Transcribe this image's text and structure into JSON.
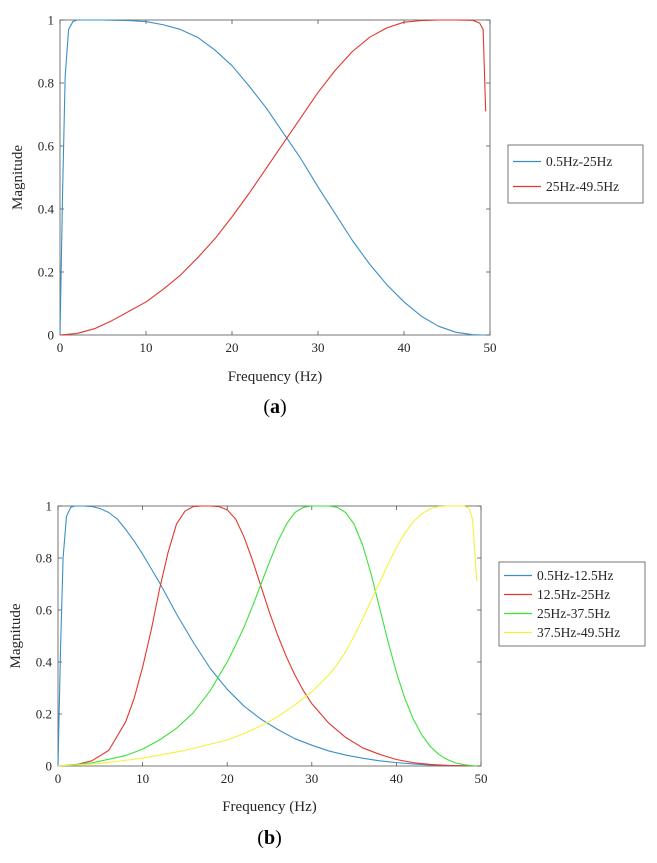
{
  "chart_data": [
    {
      "type": "line",
      "caption": {
        "open": "(",
        "letter": "a",
        "close": ")"
      },
      "xlabel": "Frequency (Hz)",
      "ylabel": "Magnitude",
      "xlim": [
        0,
        50
      ],
      "ylim": [
        0,
        1
      ],
      "xticks": [
        0,
        10,
        20,
        30,
        40,
        50
      ],
      "yticks": [
        0,
        0.2,
        0.4,
        0.6,
        0.8,
        1
      ],
      "ytick_labels": [
        "0",
        "0.2",
        "0.4",
        "0.6",
        "0.8",
        "1"
      ],
      "grid": false,
      "legend_position": "right",
      "series": [
        {
          "name": "0.5Hz-25Hz",
          "color": "#3b8fc7",
          "x": [
            0,
            0.3,
            0.6,
            1.0,
            1.5,
            2,
            3,
            5,
            8,
            10,
            12,
            14,
            16,
            18,
            20,
            22,
            24,
            25,
            26,
            28,
            30,
            32,
            34,
            36,
            38,
            40,
            42,
            44,
            46,
            48,
            49,
            49.5
          ],
          "y": [
            0,
            0.45,
            0.82,
            0.97,
            0.995,
            1,
            1,
            1,
            0.998,
            0.995,
            0.985,
            0.97,
            0.945,
            0.905,
            0.855,
            0.79,
            0.72,
            0.68,
            0.64,
            0.56,
            0.47,
            0.385,
            0.3,
            0.225,
            0.16,
            0.105,
            0.06,
            0.028,
            0.009,
            0.001,
            0,
            0
          ]
        },
        {
          "name": "25Hz-49.5Hz",
          "color": "#e2372d",
          "x": [
            0,
            2,
            4,
            6,
            8,
            10,
            12,
            14,
            16,
            18,
            20,
            22,
            24,
            25,
            26,
            28,
            30,
            32,
            34,
            36,
            38,
            40,
            42,
            44,
            46,
            48,
            48.8,
            49.2,
            49.5
          ],
          "y": [
            0,
            0.005,
            0.02,
            0.045,
            0.075,
            0.105,
            0.145,
            0.19,
            0.245,
            0.305,
            0.375,
            0.45,
            0.53,
            0.57,
            0.61,
            0.69,
            0.77,
            0.84,
            0.9,
            0.945,
            0.975,
            0.993,
            0.998,
            1,
            1,
            0.999,
            0.99,
            0.97,
            0.71
          ]
        }
      ]
    },
    {
      "type": "line",
      "caption": {
        "open": "(",
        "letter": "b",
        "close": ")"
      },
      "xlabel": "Frequency (Hz)",
      "ylabel": "Magnitude",
      "xlim": [
        0,
        50
      ],
      "ylim": [
        0,
        1
      ],
      "xticks": [
        0,
        10,
        20,
        30,
        40,
        50
      ],
      "yticks": [
        0,
        0.2,
        0.4,
        0.6,
        0.8,
        1
      ],
      "ytick_labels": [
        "0",
        "0.2",
        "0.4",
        "0.6",
        "0.8",
        "1"
      ],
      "grid": false,
      "legend_position": "right",
      "series": [
        {
          "name": "0.5Hz-12.5Hz",
          "color": "#3b8fc7",
          "x": [
            0,
            0.3,
            0.6,
            1.0,
            1.5,
            2,
            3,
            4,
            5,
            6,
            7,
            8,
            9,
            10,
            11,
            12,
            13,
            14,
            16,
            18,
            20,
            22,
            24,
            26,
            28,
            30,
            32,
            34,
            36,
            38,
            40,
            42,
            44,
            46,
            48,
            49.5
          ],
          "y": [
            0,
            0.45,
            0.8,
            0.96,
            0.995,
            1,
            1,
            0.998,
            0.99,
            0.975,
            0.95,
            0.91,
            0.865,
            0.815,
            0.76,
            0.705,
            0.645,
            0.585,
            0.475,
            0.375,
            0.295,
            0.23,
            0.18,
            0.14,
            0.105,
            0.08,
            0.058,
            0.042,
            0.03,
            0.02,
            0.013,
            0.008,
            0.004,
            0.002,
            0.001,
            0
          ]
        },
        {
          "name": "12.5Hz-25Hz",
          "color": "#e2372d",
          "x": [
            0,
            2,
            4,
            6,
            8,
            9,
            10,
            11,
            12,
            13,
            14,
            15,
            16,
            17,
            18,
            19,
            20,
            21,
            22,
            23,
            24,
            25,
            26,
            27,
            28,
            29,
            30,
            32,
            34,
            36,
            38,
            40,
            42,
            44,
            46,
            48,
            49.5
          ],
          "y": [
            0,
            0.004,
            0.02,
            0.06,
            0.17,
            0.26,
            0.38,
            0.52,
            0.68,
            0.82,
            0.93,
            0.98,
            0.998,
            1,
            1,
            0.998,
            0.985,
            0.95,
            0.88,
            0.79,
            0.69,
            0.59,
            0.5,
            0.42,
            0.35,
            0.29,
            0.24,
            0.165,
            0.11,
            0.07,
            0.045,
            0.025,
            0.013,
            0.006,
            0.002,
            0.001,
            0
          ]
        },
        {
          "name": "25Hz-37.5Hz",
          "color": "#3ce03c",
          "x": [
            0,
            4,
            8,
            10,
            12,
            14,
            16,
            18,
            19,
            20,
            21,
            22,
            23,
            24,
            25,
            26,
            27,
            28,
            29,
            30,
            31,
            32,
            33,
            34,
            35,
            36,
            37,
            38,
            39,
            40,
            41,
            42,
            43,
            44,
            45,
            46,
            47,
            48,
            49,
            49.5
          ],
          "y": [
            0,
            0.012,
            0.04,
            0.065,
            0.1,
            0.145,
            0.205,
            0.29,
            0.345,
            0.4,
            0.465,
            0.535,
            0.615,
            0.7,
            0.785,
            0.865,
            0.93,
            0.975,
            0.995,
            1,
            1,
            1,
            0.995,
            0.975,
            0.93,
            0.85,
            0.74,
            0.61,
            0.48,
            0.36,
            0.26,
            0.18,
            0.12,
            0.075,
            0.045,
            0.025,
            0.012,
            0.005,
            0.001,
            0
          ]
        },
        {
          "name": "37.5Hz-49.5Hz",
          "color": "#f2f23a",
          "x": [
            0,
            5,
            10,
            15,
            20,
            22,
            24,
            26,
            28,
            30,
            32,
            33,
            34,
            35,
            36,
            37,
            38,
            39,
            40,
            41,
            42,
            43,
            44,
            45,
            46,
            47,
            48,
            48.6,
            49,
            49.5
          ],
          "y": [
            0,
            0.01,
            0.03,
            0.06,
            0.1,
            0.125,
            0.155,
            0.19,
            0.235,
            0.285,
            0.35,
            0.39,
            0.44,
            0.5,
            0.565,
            0.635,
            0.705,
            0.775,
            0.84,
            0.895,
            0.94,
            0.97,
            0.99,
            0.998,
            1,
            1,
            1,
            0.99,
            0.95,
            0.71
          ]
        }
      ]
    }
  ]
}
